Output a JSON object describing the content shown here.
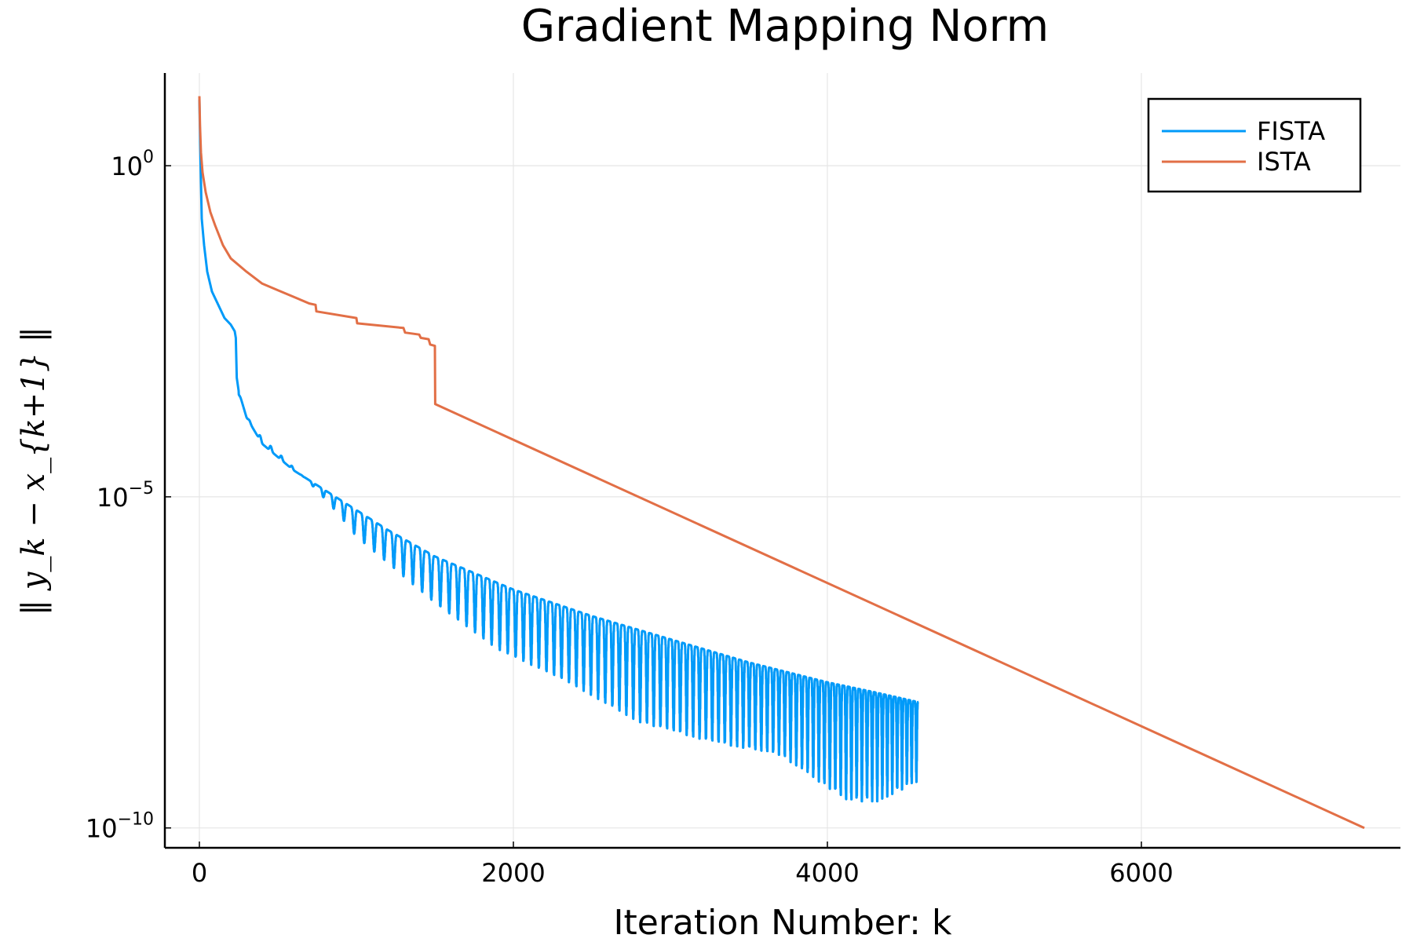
{
  "chart_data": {
    "type": "line",
    "title": "Gradient Mapping Norm",
    "xlabel": "Iteration Number: k",
    "ylabel": "‖ y_k − x_{k+1} ‖",
    "xlim": [
      -220,
      7650
    ],
    "ylim_log10": [
      -10.3,
      1.4
    ],
    "y_scale": "log",
    "grid": true,
    "legend_position": "top-right",
    "x_ticks": [
      {
        "value": 0,
        "label": "0"
      },
      {
        "value": 2000,
        "label": "2000"
      },
      {
        "value": 4000,
        "label": "4000"
      },
      {
        "value": 6000,
        "label": "6000"
      }
    ],
    "y_ticks": [
      {
        "log10": 0,
        "base": "10",
        "exp": "0"
      },
      {
        "log10": -5,
        "base": "10",
        "exp": "−5"
      },
      {
        "log10": -10,
        "base": "10",
        "exp": "−10"
      }
    ],
    "series": [
      {
        "name": "FISTA",
        "color": "#009af9",
        "oscillating": true,
        "envelope_log10": [
          [
            0,
            1.0
          ],
          [
            5,
            0.3
          ],
          [
            15,
            -0.8
          ],
          [
            30,
            -1.2
          ],
          [
            50,
            -1.6
          ],
          [
            80,
            -1.9
          ],
          [
            120,
            -2.1
          ],
          [
            160,
            -2.3
          ],
          [
            200,
            -2.4
          ],
          [
            225,
            -2.5
          ],
          [
            232,
            -2.6
          ],
          [
            238,
            -3.2
          ],
          [
            250,
            -3.4
          ],
          [
            300,
            -3.8
          ],
          [
            400,
            -4.2
          ],
          [
            600,
            -4.6
          ],
          [
            800,
            -4.9
          ],
          [
            1000,
            -5.2
          ],
          [
            1200,
            -5.5
          ],
          [
            1500,
            -5.9
          ],
          [
            2000,
            -6.4
          ],
          [
            2500,
            -6.8
          ],
          [
            3000,
            -7.15
          ],
          [
            3500,
            -7.5
          ],
          [
            4000,
            -7.8
          ],
          [
            4300,
            -7.95
          ],
          [
            4580,
            -8.1
          ]
        ],
        "dip_log10": [
          [
            250,
            -3.6
          ],
          [
            1000,
            -5.6
          ],
          [
            1500,
            -6.6
          ],
          [
            1900,
            -7.3
          ],
          [
            2350,
            -7.8
          ],
          [
            2800,
            -8.4
          ],
          [
            3250,
            -8.7
          ],
          [
            3700,
            -8.9
          ],
          [
            4130,
            -9.6
          ],
          [
            4320,
            -9.6
          ],
          [
            4580,
            -9.3
          ]
        ],
        "period": [
          [
            0,
            70
          ],
          [
            1000,
            65
          ],
          [
            2000,
            50
          ],
          [
            3000,
            42
          ],
          [
            4000,
            35
          ],
          [
            4580,
            30
          ]
        ],
        "end_x": 4580
      },
      {
        "name": "ISTA",
        "color": "#e26f46",
        "points_log10": [
          [
            0,
            1.05
          ],
          [
            4,
            0.6
          ],
          [
            10,
            0.2
          ],
          [
            20,
            -0.1
          ],
          [
            40,
            -0.4
          ],
          [
            70,
            -0.7
          ],
          [
            100,
            -0.9
          ],
          [
            150,
            -1.2
          ],
          [
            200,
            -1.4
          ],
          [
            300,
            -1.6
          ],
          [
            400,
            -1.78
          ],
          [
            500,
            -1.88
          ],
          [
            600,
            -1.98
          ],
          [
            700,
            -2.08
          ],
          [
            740,
            -2.1
          ],
          [
            745,
            -2.2
          ],
          [
            1000,
            -2.3
          ],
          [
            1005,
            -2.38
          ],
          [
            1300,
            -2.45
          ],
          [
            1310,
            -2.52
          ],
          [
            1400,
            -2.55
          ],
          [
            1410,
            -2.6
          ],
          [
            1460,
            -2.62
          ],
          [
            1470,
            -2.7
          ],
          [
            1500,
            -2.72
          ],
          [
            1502,
            -3.6
          ],
          [
            7420,
            -10.0
          ]
        ]
      }
    ]
  }
}
